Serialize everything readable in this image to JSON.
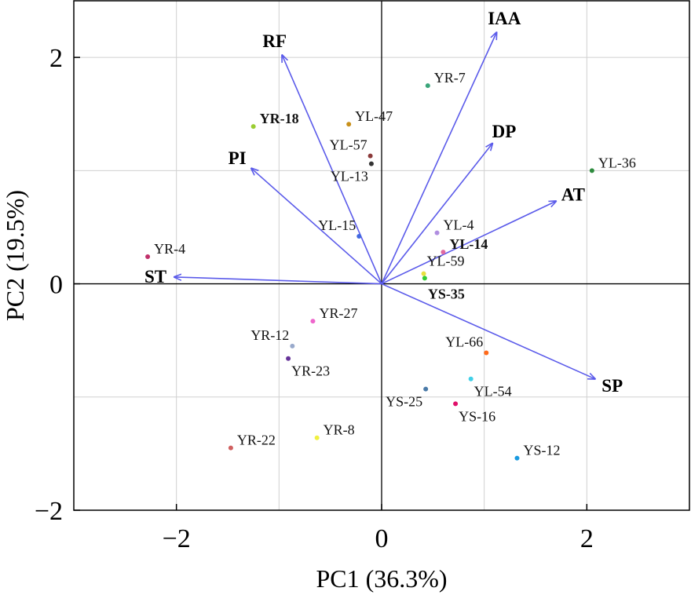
{
  "chart_data": {
    "type": "scatter",
    "subtype": "pca-biplot",
    "xlabel": "PC1 (36.3%)",
    "ylabel": "PC2 (19.5%)",
    "xlim": [
      -3.0,
      3.0
    ],
    "ylim": [
      -2.0,
      2.5
    ],
    "xticks": [
      -2,
      0,
      2
    ],
    "xtick_labels": [
      "−2",
      "0",
      "2"
    ],
    "yticks": [
      -2,
      0,
      2
    ],
    "ytick_labels": [
      "−2",
      "0",
      "2"
    ],
    "grid": true,
    "vector_color": "#5b5bea",
    "points": [
      {
        "label": "YR-7",
        "x": 0.45,
        "y": 1.75,
        "color": "#3aa57a",
        "bold": false,
        "pos": "right"
      },
      {
        "label": "YR-18",
        "x": -1.25,
        "y": 1.39,
        "color": "#9acd32",
        "bold": true,
        "pos": "right"
      },
      {
        "label": "YL-47",
        "x": -0.32,
        "y": 1.41,
        "color": "#c8901a",
        "bold": false,
        "pos": "right"
      },
      {
        "label": "YL-57",
        "x": -0.11,
        "y": 1.13,
        "color": "#8b3a3a",
        "bold": false,
        "pos": "left-up"
      },
      {
        "label": "YL-13",
        "x": -0.1,
        "y": 1.06,
        "color": "#333333",
        "bold": false,
        "pos": "left-down"
      },
      {
        "label": "YL-36",
        "x": 2.05,
        "y": 1.0,
        "color": "#2e8b3e",
        "bold": false,
        "pos": "right"
      },
      {
        "label": "YL-15",
        "x": -0.22,
        "y": 0.42,
        "color": "#4169e1",
        "bold": false,
        "pos": "left-up"
      },
      {
        "label": "YL-4",
        "x": 0.54,
        "y": 0.45,
        "color": "#b08ee0",
        "bold": false,
        "pos": "right"
      },
      {
        "label": "YL-14",
        "x": 0.6,
        "y": 0.28,
        "color": "#e06aa0",
        "bold": true,
        "pos": "right"
      },
      {
        "label": "YL-59",
        "x": 0.41,
        "y": 0.09,
        "color": "#e8e040",
        "bold": false,
        "pos": "right-up"
      },
      {
        "label": "YS-35",
        "x": 0.42,
        "y": 0.05,
        "color": "#33cc33",
        "bold": true,
        "pos": "below"
      },
      {
        "label": "YR-4",
        "x": -2.28,
        "y": 0.24,
        "color": "#c0306a",
        "bold": false,
        "pos": "right"
      },
      {
        "label": "YR-27",
        "x": -0.67,
        "y": -0.33,
        "color": "#ee66cc",
        "bold": false,
        "pos": "right"
      },
      {
        "label": "YR-12",
        "x": -0.87,
        "y": -0.55,
        "color": "#99aacc",
        "bold": false,
        "pos": "left-up"
      },
      {
        "label": "YR-23",
        "x": -0.91,
        "y": -0.66,
        "color": "#663399",
        "bold": false,
        "pos": "right-down"
      },
      {
        "label": "YL-66",
        "x": 1.02,
        "y": -0.61,
        "color": "#ff6a1a",
        "bold": false,
        "pos": "left-up"
      },
      {
        "label": "YL-54",
        "x": 0.87,
        "y": -0.84,
        "color": "#40d0e8",
        "bold": false,
        "pos": "right-down"
      },
      {
        "label": "YS-25",
        "x": 0.43,
        "y": -0.93,
        "color": "#4a7aa8",
        "bold": false,
        "pos": "left-down"
      },
      {
        "label": "YS-16",
        "x": 0.72,
        "y": -1.06,
        "color": "#e0106a",
        "bold": false,
        "pos": "right-down"
      },
      {
        "label": "YR-8",
        "x": -0.63,
        "y": -1.36,
        "color": "#f0f040",
        "bold": false,
        "pos": "right"
      },
      {
        "label": "YR-22",
        "x": -1.47,
        "y": -1.45,
        "color": "#d06060",
        "bold": false,
        "pos": "right"
      },
      {
        "label": "YS-12",
        "x": 1.32,
        "y": -1.54,
        "color": "#1a9ae0",
        "bold": false,
        "pos": "right"
      }
    ],
    "vectors": [
      {
        "label": "RF",
        "x": -0.97,
        "y": 2.02
      },
      {
        "label": "IAA",
        "x": 1.12,
        "y": 2.22
      },
      {
        "label": "DP",
        "x": 1.08,
        "y": 1.24
      },
      {
        "label": "PI",
        "x": -1.27,
        "y": 1.02
      },
      {
        "label": "AT",
        "x": 1.7,
        "y": 0.73
      },
      {
        "label": "ST",
        "x": -2.02,
        "y": 0.06
      },
      {
        "label": "SP",
        "x": 2.08,
        "y": -0.84
      }
    ]
  }
}
